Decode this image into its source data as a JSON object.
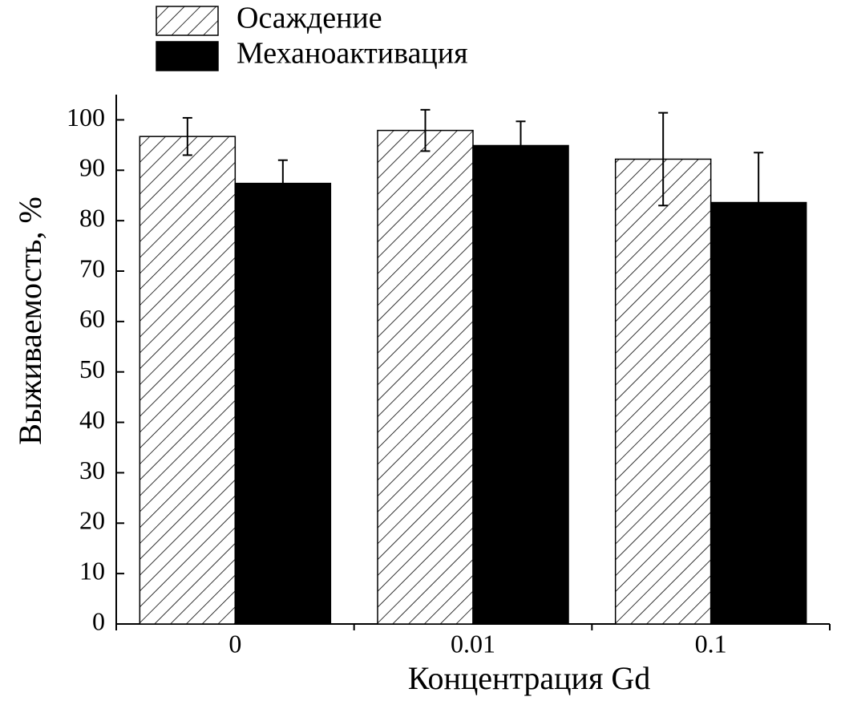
{
  "chart_data": {
    "type": "bar",
    "x_label": "Концентрация Gd",
    "y_label": "Выживаемость, %",
    "categories": [
      "0",
      "0.01",
      "0.1"
    ],
    "series": [
      {
        "name": "Осаждение",
        "color": "#ffffff",
        "pattern": "hatch",
        "values": [
          96.7,
          97.9,
          92.2
        ],
        "errors": [
          3.7,
          4.1,
          9.2
        ]
      },
      {
        "name": "Механоактивация",
        "color": "#000000",
        "values": [
          87.4,
          94.9,
          83.6
        ],
        "errors": [
          4.6,
          4.8,
          9.9
        ]
      }
    ],
    "ylim": [
      0,
      105
    ],
    "yticks": [
      0,
      10,
      20,
      30,
      40,
      50,
      60,
      70,
      80,
      90,
      100
    ]
  }
}
